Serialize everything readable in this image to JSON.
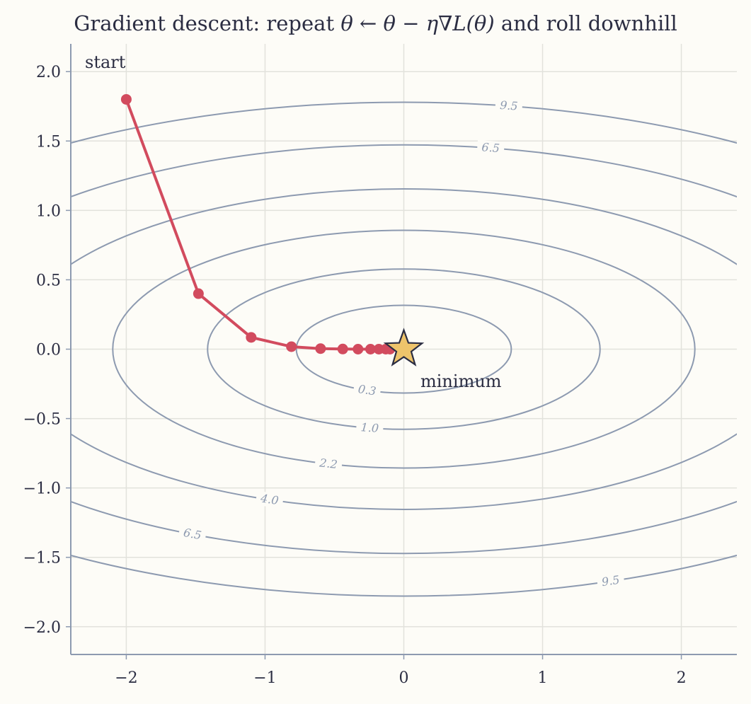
{
  "title_prefix": "Gradient descent: repeat",
  "title_math": "θ ← θ − η∇L(θ)",
  "title_suffix": "and roll downhill",
  "chart_data": {
    "type": "line",
    "title": "Gradient descent: repeat θ ← θ − η∇L(θ) and roll downhill",
    "xlim": [
      -2.4,
      2.4
    ],
    "ylim": [
      -2.2,
      2.2
    ],
    "x_ticks": [
      -2,
      -1,
      0,
      1,
      2
    ],
    "x_tick_labels": [
      "−2",
      "−1",
      "0",
      "1",
      "2"
    ],
    "y_ticks": [
      -2.0,
      -1.5,
      -1.0,
      -0.5,
      0.0,
      0.5,
      1.0,
      1.5,
      2.0
    ],
    "y_tick_labels": [
      "−2.0",
      "−1.5",
      "−1.0",
      "−0.5",
      "0.0",
      "0.5",
      "1.0",
      "1.5",
      "2.0"
    ],
    "grid": true,
    "contour_levels": [
      0.3,
      1.0,
      2.2,
      4.0,
      6.5,
      9.5
    ],
    "contour_label_text": [
      "0.3",
      "1.0",
      "2.2",
      "4.0",
      "6.5",
      "9.5"
    ],
    "contour_color": "#8d9ab0",
    "path": {
      "color": "#d24b5e",
      "x": [
        -2.0,
        -1.48,
        -1.1,
        -0.81,
        -0.6,
        -0.44,
        -0.33,
        -0.24,
        -0.18,
        -0.13,
        -0.1
      ],
      "y": [
        1.8,
        0.4,
        0.085,
        0.018,
        0.004,
        0.001,
        0.0,
        0.0,
        0.0,
        0.0,
        0.0
      ]
    },
    "minimum": {
      "x": 0,
      "y": 0,
      "color": "#eec46b"
    },
    "annotations": [
      {
        "text": "start"
      },
      {
        "text": "minimum"
      }
    ]
  }
}
